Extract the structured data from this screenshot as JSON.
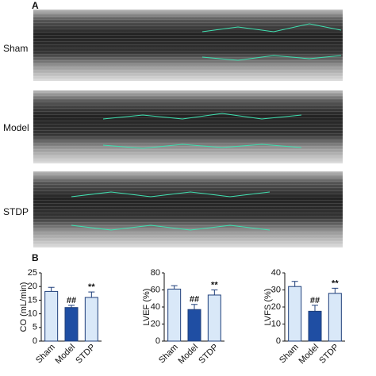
{
  "panel_labels": [
    "A",
    "B"
  ],
  "echo_rows": [
    "Sham",
    "Model",
    "STDP"
  ],
  "chart_data": [
    {
      "type": "bar",
      "y_label": "CO (mL/min)",
      "categories": [
        "Sham",
        "Model",
        "STDP"
      ],
      "values": [
        18.2,
        12.3,
        16
      ],
      "errors": [
        1.5,
        0.8,
        2
      ],
      "colors": [
        "#d9e8f8",
        "#1f4ea3",
        "#d9e8f8"
      ],
      "ylim": [
        0,
        25
      ],
      "yticks": [
        0,
        5,
        10,
        15,
        20,
        25
      ],
      "annotations": [
        {
          "category": "Model",
          "text": "##"
        },
        {
          "category": "STDP",
          "text": "**"
        }
      ]
    },
    {
      "type": "bar",
      "y_label": "LVEF (%)",
      "categories": [
        "Sham",
        "Model",
        "STDP"
      ],
      "values": [
        61,
        37,
        54
      ],
      "errors": [
        4,
        6,
        6
      ],
      "colors": [
        "#d9e8f8",
        "#1f4ea3",
        "#d9e8f8"
      ],
      "ylim": [
        0,
        80
      ],
      "yticks": [
        0,
        20,
        40,
        60,
        80
      ],
      "annotations": [
        {
          "category": "Model",
          "text": "##"
        },
        {
          "category": "STDP",
          "text": "**"
        }
      ]
    },
    {
      "type": "bar",
      "y_label": "LVFS (%)",
      "categories": [
        "Sham",
        "Model",
        "STDP"
      ],
      "values": [
        32,
        17.5,
        28
      ],
      "errors": [
        3,
        3.5,
        3
      ],
      "colors": [
        "#d9e8f8",
        "#1f4ea3",
        "#d9e8f8"
      ],
      "ylim": [
        0,
        40
      ],
      "yticks": [
        0,
        10,
        20,
        30,
        40
      ],
      "annotations": [
        {
          "category": "Model",
          "text": "##"
        },
        {
          "category": "STDP",
          "text": "**"
        }
      ]
    }
  ]
}
